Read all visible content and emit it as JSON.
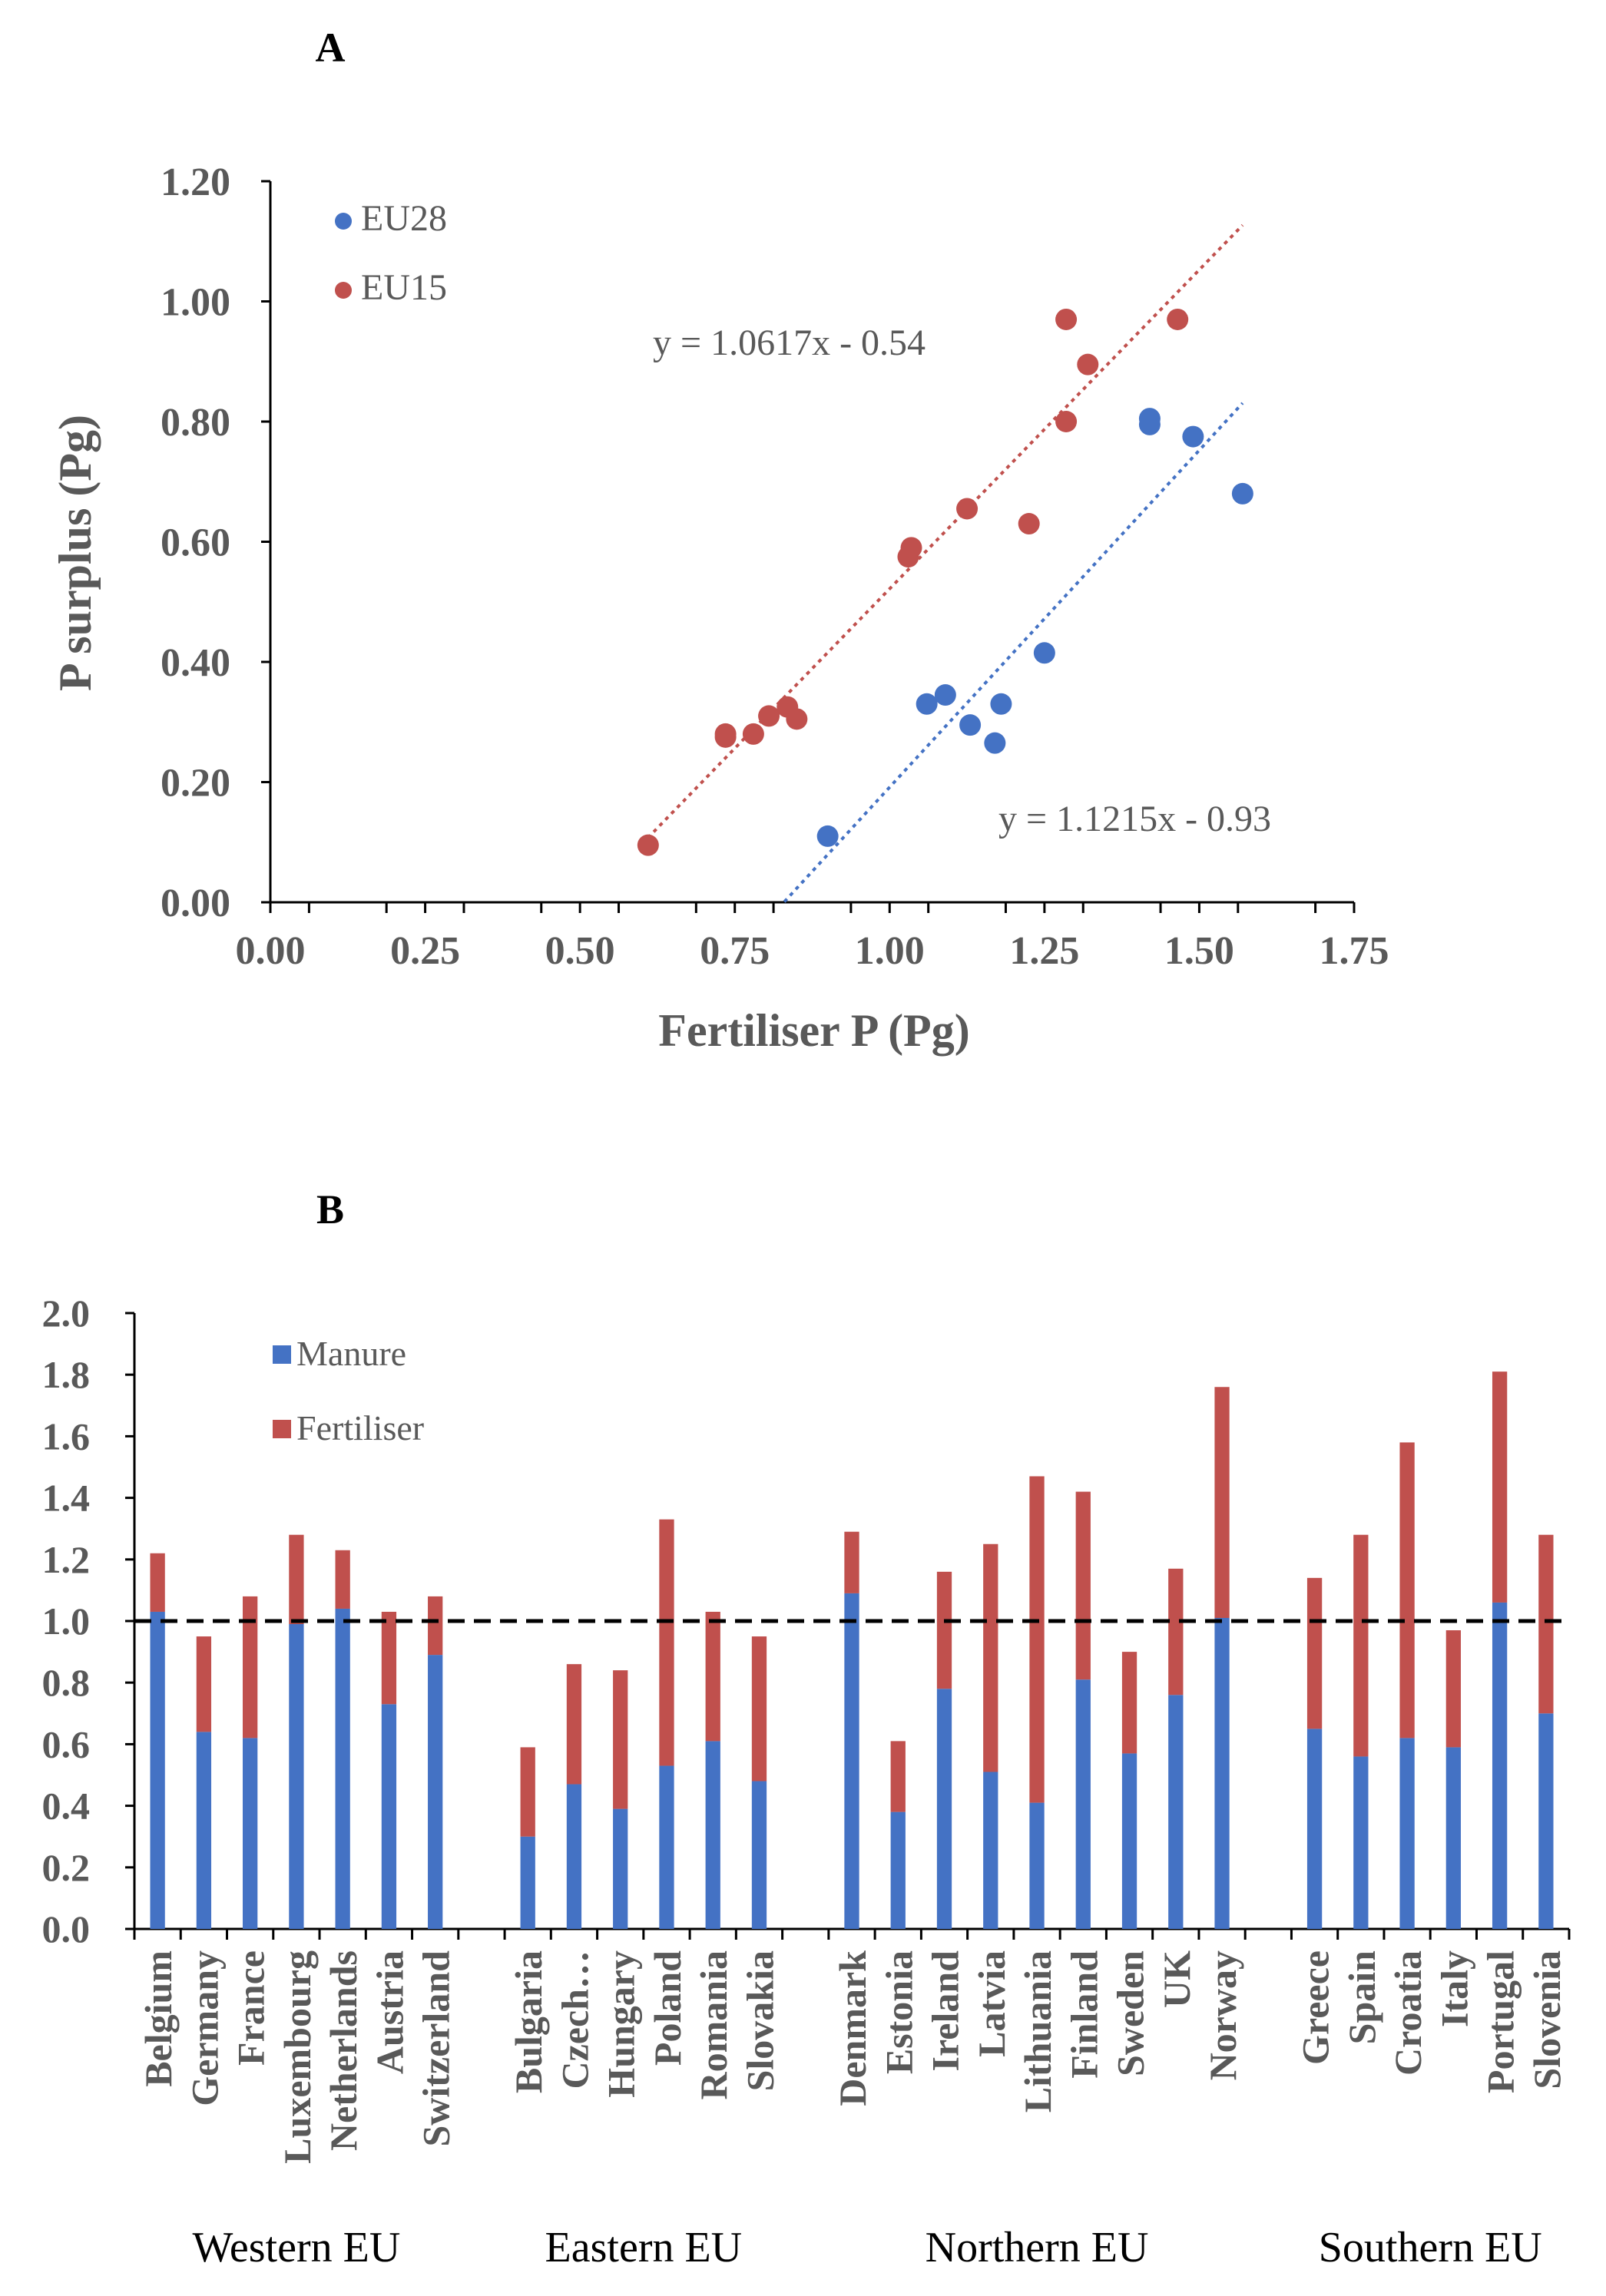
{
  "panels": {
    "a_label": "A",
    "b_label": "B"
  },
  "colors": {
    "blue": "#4472C4",
    "red": "#C0504D",
    "axis": "#000000",
    "text": "#595959"
  },
  "chart_data": [
    {
      "type": "scatter",
      "panel": "A",
      "xlabel": "Fertiliser P (Pg)",
      "ylabel": "P surplus (Pg)",
      "xlim": [
        0,
        1.75
      ],
      "ylim": [
        0,
        1.2
      ],
      "xticks": [
        "0.00",
        "0.25",
        "0.50",
        "0.75",
        "1.00",
        "1.25",
        "1.50",
        "1.75"
      ],
      "yticks": [
        "0.00",
        "0.20",
        "0.40",
        "0.60",
        "0.80",
        "1.00",
        "1.20"
      ],
      "legend_position": "top-left",
      "series": [
        {
          "name": "EU28",
          "color": "#4472C4",
          "points": [
            {
              "x": 0.9,
              "y": 0.11
            },
            {
              "x": 1.06,
              "y": 0.33
            },
            {
              "x": 1.09,
              "y": 0.345
            },
            {
              "x": 1.13,
              "y": 0.295
            },
            {
              "x": 1.17,
              "y": 0.265
            },
            {
              "x": 1.18,
              "y": 0.33
            },
            {
              "x": 1.25,
              "y": 0.415
            },
            {
              "x": 1.42,
              "y": 0.805
            },
            {
              "x": 1.42,
              "y": 0.795
            },
            {
              "x": 1.49,
              "y": 0.775
            },
            {
              "x": 1.57,
              "y": 0.68
            }
          ],
          "trendline": {
            "label": "y = 1.1215x - 0.93",
            "slope": 1.1215,
            "intercept": -0.93,
            "x_range": [
              0.83,
              1.57
            ]
          }
        },
        {
          "name": "EU15",
          "color": "#C0504D",
          "points": [
            {
              "x": 0.61,
              "y": 0.095
            },
            {
              "x": 0.735,
              "y": 0.275
            },
            {
              "x": 0.735,
              "y": 0.28
            },
            {
              "x": 0.78,
              "y": 0.28
            },
            {
              "x": 0.805,
              "y": 0.31
            },
            {
              "x": 0.835,
              "y": 0.325
            },
            {
              "x": 0.85,
              "y": 0.305
            },
            {
              "x": 1.03,
              "y": 0.575
            },
            {
              "x": 1.035,
              "y": 0.59
            },
            {
              "x": 1.125,
              "y": 0.655
            },
            {
              "x": 1.225,
              "y": 0.63
            },
            {
              "x": 1.285,
              "y": 0.97
            },
            {
              "x": 1.285,
              "y": 0.8
            },
            {
              "x": 1.32,
              "y": 0.895
            },
            {
              "x": 1.465,
              "y": 0.97
            }
          ],
          "trendline": {
            "label": "y = 1.0617x - 0.54",
            "slope": 1.0617,
            "intercept": -0.54,
            "x_range": [
              0.6,
              1.57
            ]
          }
        }
      ]
    },
    {
      "type": "bar",
      "stacked": true,
      "panel": "B",
      "ylim": [
        0,
        2.0
      ],
      "yticks": [
        "0.0",
        "0.2",
        "0.4",
        "0.6",
        "0.8",
        "1.0",
        "1.2",
        "1.4",
        "1.6",
        "1.8",
        "2.0"
      ],
      "reference_line": 1.0,
      "legend_position": "top-left",
      "series_names": [
        "Manure",
        "Fertiliser"
      ],
      "series_colors": [
        "#4472C4",
        "#C0504D"
      ],
      "groups": [
        {
          "name": "Western  EU",
          "bars": [
            {
              "label": "Belgium",
              "manure": 1.03,
              "fertiliser": 0.19
            },
            {
              "label": "Germany",
              "manure": 0.64,
              "fertiliser": 0.31
            },
            {
              "label": "France",
              "manure": 0.62,
              "fertiliser": 0.46
            },
            {
              "label": "Luxembourg",
              "manure": 0.99,
              "fertiliser": 0.29
            },
            {
              "label": "Netherlands",
              "manure": 1.04,
              "fertiliser": 0.19
            },
            {
              "label": "Austria",
              "manure": 0.73,
              "fertiliser": 0.3
            },
            {
              "label": "Switzerland",
              "manure": 0.89,
              "fertiliser": 0.19
            }
          ]
        },
        {
          "name": "Eastern EU",
          "bars": [
            {
              "label": "Bulgaria",
              "manure": 0.3,
              "fertiliser": 0.29
            },
            {
              "label": "Czech…",
              "manure": 0.47,
              "fertiliser": 0.39
            },
            {
              "label": "Hungary",
              "manure": 0.39,
              "fertiliser": 0.45
            },
            {
              "label": "Poland",
              "manure": 0.53,
              "fertiliser": 0.8
            },
            {
              "label": "Romania",
              "manure": 0.61,
              "fertiliser": 0.42
            },
            {
              "label": "Slovakia",
              "manure": 0.48,
              "fertiliser": 0.47
            }
          ]
        },
        {
          "name": "Northern EU",
          "bars": [
            {
              "label": "Denmark",
              "manure": 1.09,
              "fertiliser": 0.2
            },
            {
              "label": "Estonia",
              "manure": 0.38,
              "fertiliser": 0.23
            },
            {
              "label": "Ireland",
              "manure": 0.78,
              "fertiliser": 0.38
            },
            {
              "label": "Latvia",
              "manure": 0.51,
              "fertiliser": 0.74
            },
            {
              "label": "Lithuania",
              "manure": 0.41,
              "fertiliser": 1.06
            },
            {
              "label": "Finland",
              "manure": 0.81,
              "fertiliser": 0.61
            },
            {
              "label": "Sweden",
              "manure": 0.57,
              "fertiliser": 0.33
            },
            {
              "label": "UK",
              "manure": 0.76,
              "fertiliser": 0.41
            },
            {
              "label": "Norway",
              "manure": 1.01,
              "fertiliser": 0.75
            }
          ]
        },
        {
          "name": "Southern EU",
          "bars": [
            {
              "label": "Greece",
              "manure": 0.65,
              "fertiliser": 0.49
            },
            {
              "label": "Spain",
              "manure": 0.56,
              "fertiliser": 0.72
            },
            {
              "label": "Croatia",
              "manure": 0.62,
              "fertiliser": 0.96
            },
            {
              "label": "Italy",
              "manure": 0.59,
              "fertiliser": 0.38
            },
            {
              "label": "Portugal",
              "manure": 1.06,
              "fertiliser": 0.75
            },
            {
              "label": "Slovenia",
              "manure": 0.7,
              "fertiliser": 0.58
            }
          ]
        }
      ]
    }
  ]
}
